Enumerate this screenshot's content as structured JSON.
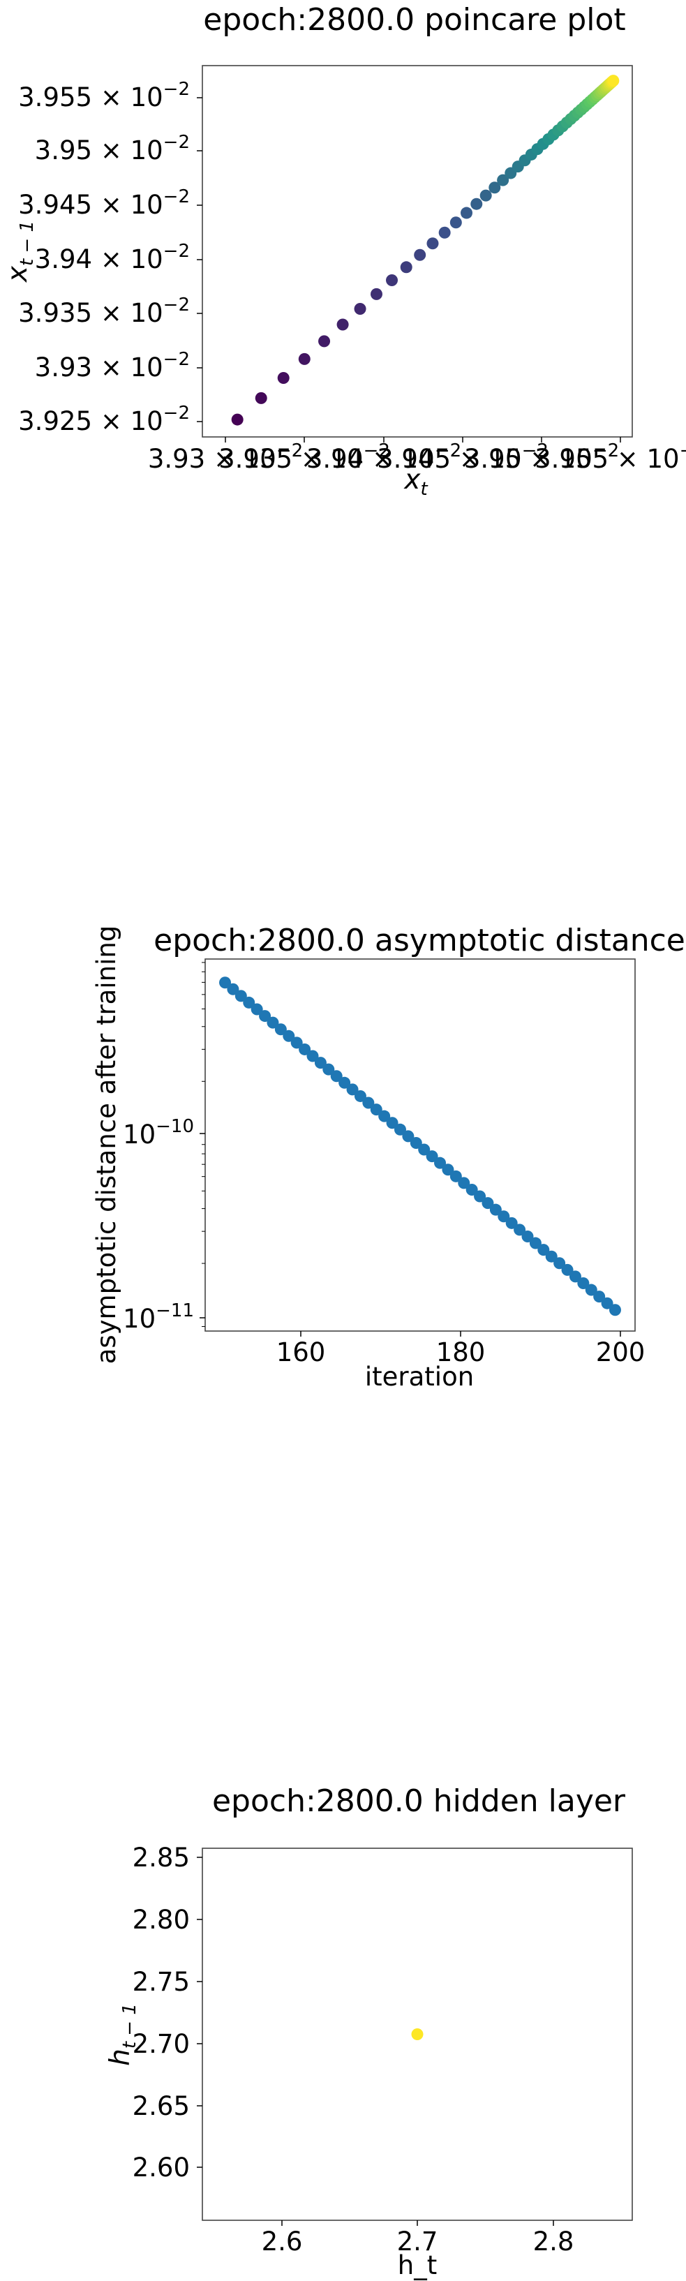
{
  "charts": [
    {
      "title": "epoch:2800.0 poincare plot",
      "xlabel_main": "x",
      "xlabel_sub": "t",
      "ylabel_main": "x",
      "ylabel_sub": "t − 1",
      "xtick_labels": [
        "3.93 × 10",
        "3.935 × 10",
        "3.94 × 10",
        "3.945 × 10",
        "3.95 × 10",
        "3.955 × 10"
      ],
      "xtick_exp": "−2",
      "ytick_labels": [
        "3.955 × 10",
        "3.95 × 10",
        "3.945 × 10",
        "3.94 × 10",
        "3.935 × 10",
        "3.93 × 10",
        "3.925 × 10"
      ],
      "ytick_exp": "−2"
    },
    {
      "title": "epoch:2800.0 asymptotic distance",
      "xlabel": "iteration",
      "ylabel": "asymptotic distance after training",
      "xtick_labels": [
        "160",
        "180",
        "200"
      ],
      "ytick_base": [
        "10",
        "10"
      ],
      "ytick_exp": [
        "−10",
        "−11"
      ]
    },
    {
      "title": "epoch:2800.0 hidden layer",
      "xlabel": "h_t",
      "ylabel_main": "h",
      "ylabel_sub": "t − 1",
      "xtick_labels": [
        "2.6",
        "2.7",
        "2.8"
      ],
      "ytick_labels": [
        "2.85",
        "2.80",
        "2.75",
        "2.70",
        "2.65",
        "2.60"
      ]
    }
  ],
  "chart_data": [
    {
      "type": "scatter",
      "title": "epoch:2800.0 poincare plot",
      "xlabel": "x_t",
      "ylabel": "x_{t-1}",
      "xscale": "log",
      "yscale": "log",
      "xlim": [
        0.039305,
        0.039576
      ],
      "ylim": [
        0.039237,
        0.03958
      ],
      "xticks": [
        0.0393,
        0.03935,
        0.0394,
        0.03945,
        0.0395,
        0.03955
      ],
      "yticks": [
        0.03925,
        0.0393,
        0.03935,
        0.0394,
        0.03945,
        0.0395,
        0.03955
      ],
      "colormap": "viridis",
      "colormap_stops": [
        "#440154",
        "#3b528b",
        "#21918c",
        "#5ec962",
        "#fde725"
      ],
      "marker_color_note": "points colored by iteration order, dark purple (early) to yellow (late)",
      "series": [
        {
          "x_start": 0.039327,
          "x_end": 0.039564,
          "y_start": 0.039253,
          "y_end": 0.039566,
          "ratio": 0.94,
          "n_points": 50
        }
      ],
      "grid": false
    },
    {
      "type": "scatter",
      "title": "epoch:2800.0 asymptotic distance",
      "xlabel": "iteration",
      "ylabel": "asymptotic distance after training",
      "yscale": "log",
      "xlim": [
        147.5,
        201.5
      ],
      "ylim": [
        8.5e-12,
        9.4e-10
      ],
      "xticks": [
        160,
        180,
        200
      ],
      "yticks": [
        1e-10,
        1e-11
      ],
      "x_start": 150,
      "x_end": 199,
      "y_start": 6.98e-10,
      "y_end": 1.11e-11,
      "marker_color": "#1f77b4",
      "grid": false
    },
    {
      "type": "scatter",
      "title": "epoch:2800.0 hidden layer",
      "xlabel": "h_t",
      "ylabel": "h_{t-1}",
      "xlim": [
        2.558,
        2.858
      ],
      "ylim": [
        2.558,
        2.858
      ],
      "xticks": [
        2.6,
        2.7,
        2.8
      ],
      "yticks": [
        2.6,
        2.65,
        2.7,
        2.75,
        2.8,
        2.85
      ],
      "points": [
        {
          "x": 2.708,
          "y": 2.708
        }
      ],
      "marker_color": "#fde725",
      "grid": false
    }
  ]
}
